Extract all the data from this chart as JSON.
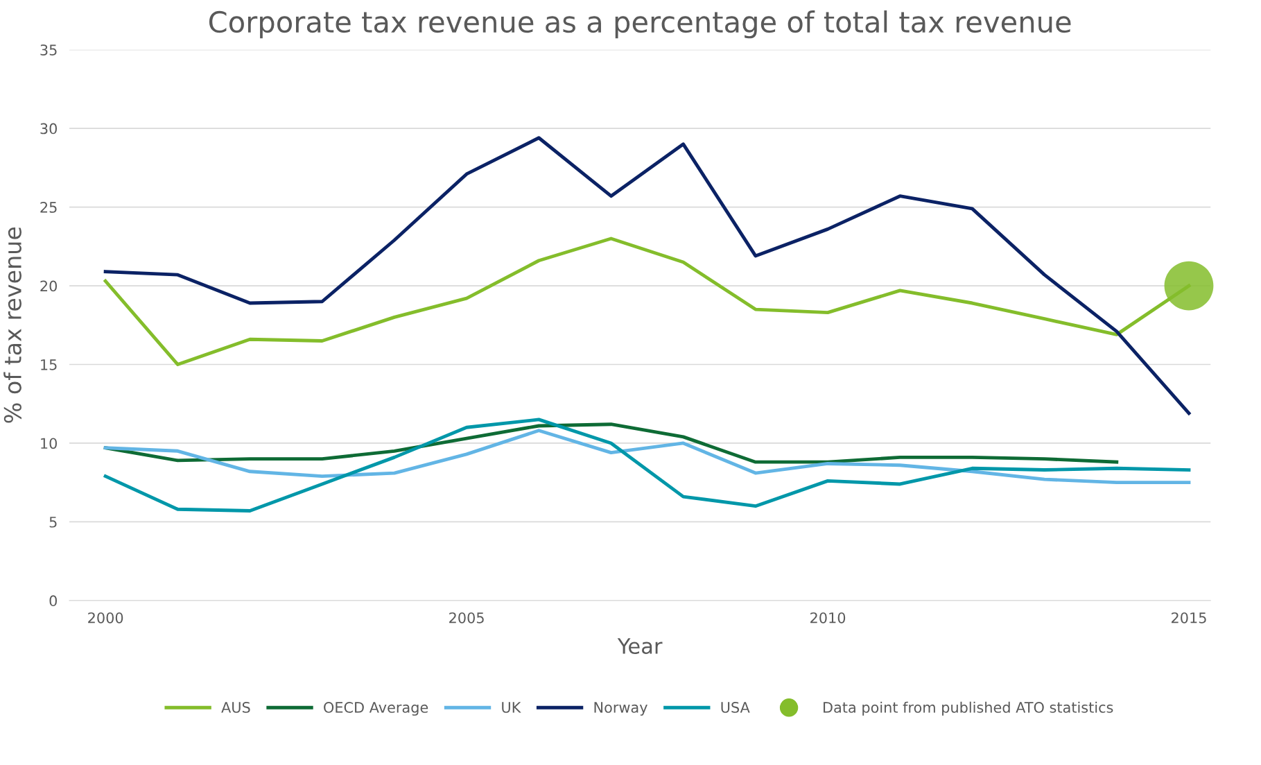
{
  "chart_data": {
    "type": "line",
    "title": "Corporate tax revenue as a percentage of total tax revenue",
    "xlabel": "Year",
    "ylabel": "% of tax revenue",
    "x": [
      2000,
      2001,
      2002,
      2003,
      2004,
      2005,
      2006,
      2007,
      2008,
      2009,
      2010,
      2011,
      2012,
      2013,
      2014,
      2015
    ],
    "series": [
      {
        "name": "AUS",
        "color": "#84bd2b",
        "values": [
          20.3,
          15.0,
          16.6,
          16.5,
          18.0,
          19.2,
          21.6,
          23.0,
          21.5,
          18.5,
          18.3,
          19.7,
          18.9,
          17.9,
          16.9,
          20.0
        ]
      },
      {
        "name": "OECD Average",
        "color": "#0e6b35",
        "values": [
          9.7,
          8.9,
          9.0,
          9.0,
          9.5,
          10.3,
          11.1,
          11.2,
          10.4,
          8.8,
          8.8,
          9.1,
          9.1,
          9.0,
          8.8,
          null
        ]
      },
      {
        "name": "UK",
        "color": "#62b5e5",
        "values": [
          9.7,
          9.5,
          8.2,
          7.9,
          8.1,
          9.3,
          10.8,
          9.4,
          10.0,
          8.1,
          8.7,
          8.6,
          8.2,
          7.7,
          7.5,
          7.5
        ]
      },
      {
        "name": "Norway",
        "color": "#0b2265",
        "values": [
          20.9,
          20.7,
          18.9,
          19.0,
          22.9,
          27.1,
          29.4,
          25.7,
          29.0,
          21.9,
          23.6,
          25.7,
          24.9,
          20.7,
          17.1,
          11.9
        ]
      },
      {
        "name": "USA",
        "color": "#0097a9",
        "values": [
          7.9,
          5.8,
          5.7,
          7.4,
          9.1,
          11.0,
          11.5,
          10.0,
          6.6,
          6.0,
          7.6,
          7.4,
          8.4,
          8.3,
          8.4,
          8.3
        ]
      },
      {
        "name": "Data point from published ATO statistics",
        "type": "scatter",
        "marker": "circle",
        "color": "#84bd2b",
        "x": [
          2015
        ],
        "values": [
          20.0
        ]
      }
    ],
    "xlim": [
      1999.5,
      2015.3
    ],
    "xticks": [
      2000,
      2005,
      2010,
      2015
    ],
    "ylim": [
      0,
      35
    ],
    "yticks": [
      0,
      5,
      10,
      15,
      20,
      25,
      30,
      35
    ],
    "grid": "y",
    "legend": "bottom",
    "line_style": "solid"
  }
}
